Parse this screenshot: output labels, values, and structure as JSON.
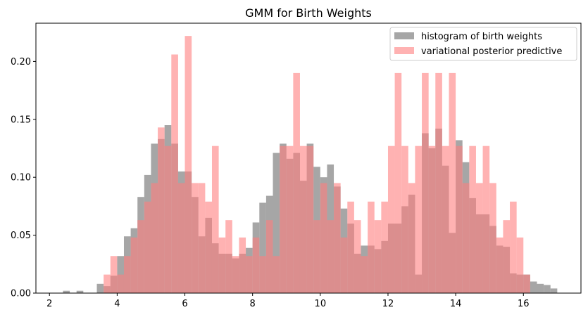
{
  "chart_data": {
    "type": "bar",
    "title": "GMM for Birth Weights",
    "xlabel": "",
    "ylabel": "",
    "xlim": [
      1.6,
      17.7
    ],
    "ylim": [
      0,
      0.233
    ],
    "bin_width": 0.2,
    "xticks": [
      2,
      4,
      6,
      8,
      10,
      12,
      14,
      16
    ],
    "yticks": [
      0.0,
      0.05,
      0.1,
      0.15,
      0.2
    ],
    "legend": "top-right",
    "grid": false,
    "series": [
      {
        "name": "histogram of birth weights",
        "color": "#808080",
        "opacity": 0.7,
        "bin_starts": [
          2.4,
          2.6,
          2.8,
          3.0,
          3.2,
          3.4,
          3.6,
          3.8,
          4.0,
          4.2,
          4.4,
          4.6,
          4.8,
          5.0,
          5.2,
          5.4,
          5.6,
          5.8,
          6.0,
          6.2,
          6.4,
          6.6,
          6.8,
          7.0,
          7.2,
          7.4,
          7.6,
          7.8,
          8.0,
          8.2,
          8.4,
          8.6,
          8.8,
          9.0,
          9.2,
          9.4,
          9.6,
          9.8,
          10.0,
          10.2,
          10.4,
          10.6,
          10.8,
          11.0,
          11.2,
          11.4,
          11.6,
          11.8,
          12.0,
          12.2,
          12.4,
          12.6,
          12.8,
          13.0,
          13.2,
          13.4,
          13.6,
          13.8,
          14.0,
          14.2,
          14.4,
          14.6,
          14.8,
          15.0,
          15.2,
          15.4,
          15.6,
          15.8,
          16.0,
          16.2,
          16.4,
          16.6,
          16.8
        ],
        "values": [
          0.002,
          0.0,
          0.002,
          0.0,
          0.0,
          0.008,
          0.006,
          0.015,
          0.032,
          0.049,
          0.056,
          0.083,
          0.102,
          0.129,
          0.133,
          0.145,
          0.129,
          0.105,
          0.105,
          0.083,
          0.049,
          0.065,
          0.043,
          0.034,
          0.034,
          0.03,
          0.034,
          0.039,
          0.061,
          0.078,
          0.084,
          0.121,
          0.129,
          0.116,
          0.121,
          0.097,
          0.129,
          0.109,
          0.1,
          0.111,
          0.092,
          0.073,
          0.06,
          0.034,
          0.041,
          0.041,
          0.038,
          0.045,
          0.06,
          0.06,
          0.075,
          0.085,
          0.016,
          0.138,
          0.125,
          0.142,
          0.11,
          0.052,
          0.132,
          0.113,
          0.082,
          0.068,
          0.068,
          0.058,
          0.041,
          0.04,
          0.017,
          0.016,
          0.016,
          0.01,
          0.008,
          0.007,
          0.004
        ]
      },
      {
        "name": "variational posterior predictive",
        "color": "#ff7f7f",
        "opacity": 0.6,
        "bin_starts": [
          3.6,
          3.8,
          4.0,
          4.2,
          4.4,
          4.6,
          4.8,
          5.0,
          5.2,
          5.4,
          5.6,
          5.8,
          6.0,
          6.2,
          6.4,
          6.6,
          6.8,
          7.0,
          7.2,
          7.4,
          7.6,
          7.8,
          8.0,
          8.2,
          8.4,
          8.6,
          8.8,
          9.0,
          9.2,
          9.4,
          9.6,
          9.8,
          10.0,
          10.2,
          10.4,
          10.6,
          10.8,
          11.0,
          11.2,
          11.4,
          11.6,
          11.8,
          12.0,
          12.2,
          12.4,
          12.6,
          12.8,
          13.0,
          13.2,
          13.4,
          13.6,
          13.8,
          14.0,
          14.2,
          14.4,
          14.6,
          14.8,
          15.0,
          15.2,
          15.4,
          15.6,
          15.8,
          16.0
        ],
        "values": [
          0.016,
          0.032,
          0.016,
          0.032,
          0.048,
          0.063,
          0.079,
          0.095,
          0.143,
          0.127,
          0.206,
          0.095,
          0.222,
          0.095,
          0.095,
          0.079,
          0.127,
          0.048,
          0.063,
          0.032,
          0.048,
          0.032,
          0.048,
          0.032,
          0.063,
          0.032,
          0.127,
          0.127,
          0.19,
          0.127,
          0.127,
          0.063,
          0.095,
          0.063,
          0.095,
          0.048,
          0.079,
          0.063,
          0.032,
          0.079,
          0.063,
          0.079,
          0.127,
          0.19,
          0.127,
          0.095,
          0.127,
          0.19,
          0.127,
          0.19,
          0.127,
          0.19,
          0.127,
          0.095,
          0.127,
          0.095,
          0.127,
          0.095,
          0.048,
          0.063,
          0.079,
          0.048,
          0.016
        ]
      }
    ]
  }
}
